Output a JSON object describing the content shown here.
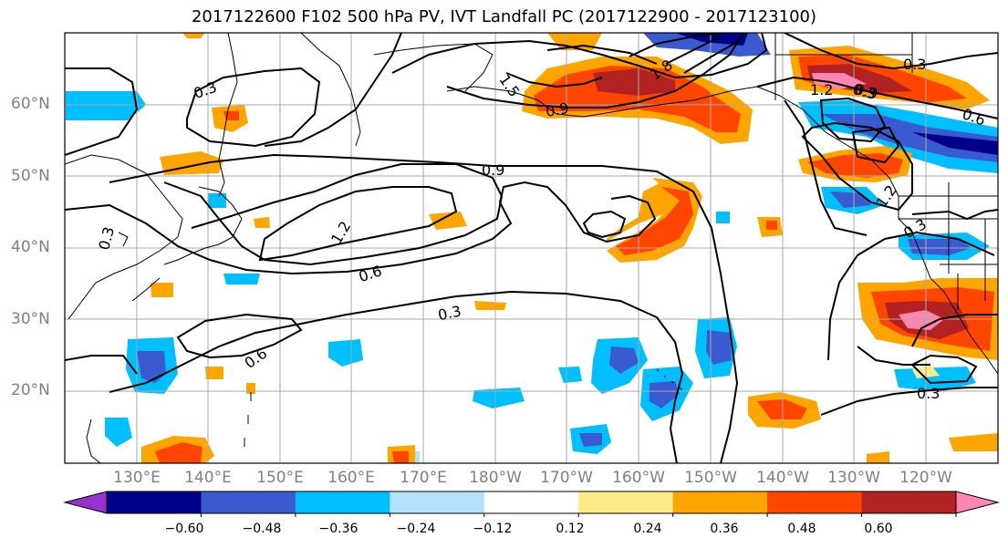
{
  "title": "2017122600 F102 500 hPa PV, IVT Landfall PC (2017122900 - 2017123100)",
  "lat_ticks": [
    "60°N",
    "50°N",
    "40°N",
    "30°N",
    "20°N"
  ],
  "lon_ticks": [
    "130°E",
    "140°E",
    "150°E",
    "160°E",
    "170°E",
    "180°W",
    "170°W",
    "160°W",
    "150°W",
    "140°W",
    "130°W",
    "120°W"
  ],
  "contour_labels": [
    "0.3",
    "1.5",
    "1.8",
    "0.9",
    "0.9",
    "1.2",
    "0.6",
    "0.3",
    "0.6",
    "0.3",
    "1.2",
    "0.3",
    "0.9",
    "0.6",
    "1.2",
    "0.3",
    "0.3",
    "0.3"
  ],
  "colorbar": {
    "tick_labels": [
      "−0.60",
      "−0.48",
      "−0.36",
      "−0.24",
      "−0.12",
      "0.12",
      "0.24",
      "0.36",
      "0.48",
      "0.60"
    ],
    "colors": [
      "#9932cc",
      "#00008b",
      "#3a5bcf",
      "#00bfff",
      "#b2e2ff",
      "#ffffff",
      "#ffea8a",
      "#ffa500",
      "#ff4500",
      "#b22222",
      "#ff85b4"
    ]
  },
  "map_colors": {
    "grid": "#a9a9a9",
    "contour": "#000000",
    "coast": "#000000"
  }
}
